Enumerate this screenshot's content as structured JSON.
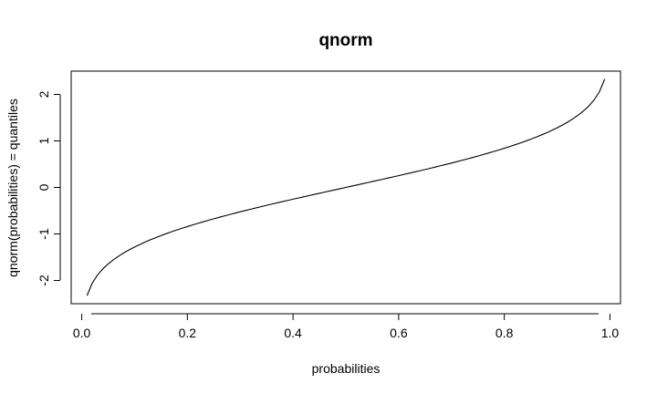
{
  "chart_data": {
    "type": "line",
    "title": "qnorm",
    "xlabel": "probabilities",
    "ylabel": "qnorm(probabilities) = quantiles",
    "xlim": [
      -0.02,
      1.02
    ],
    "ylim": [
      -2.5,
      2.5
    ],
    "xticks": [
      0.0,
      0.2,
      0.4,
      0.6,
      0.8,
      1.0
    ],
    "xtick_labels": [
      "0.0",
      "0.2",
      "0.4",
      "0.6",
      "0.8",
      "1.0"
    ],
    "yticks": [
      -2,
      -1,
      0,
      1,
      2
    ],
    "ytick_labels": [
      "-2",
      "-1",
      "0",
      "1",
      "2"
    ],
    "grid": false,
    "legend": "none",
    "series": [
      {
        "x": [
          0.01,
          0.02,
          0.03,
          0.04,
          0.05,
          0.06,
          0.07,
          0.08,
          0.09,
          0.1,
          0.11,
          0.12,
          0.13,
          0.14,
          0.15,
          0.16,
          0.17,
          0.18,
          0.19,
          0.2,
          0.21,
          0.22,
          0.23,
          0.24,
          0.25,
          0.26,
          0.27,
          0.28,
          0.29,
          0.3,
          0.31,
          0.32,
          0.33,
          0.34,
          0.35,
          0.36,
          0.37,
          0.38,
          0.39,
          0.4,
          0.41,
          0.42,
          0.43,
          0.44,
          0.45,
          0.46,
          0.47,
          0.48,
          0.49,
          0.5,
          0.51,
          0.52,
          0.53,
          0.54,
          0.55,
          0.56,
          0.57,
          0.58,
          0.59,
          0.6,
          0.61,
          0.62,
          0.63,
          0.64,
          0.65,
          0.66,
          0.67,
          0.68,
          0.69,
          0.7,
          0.71,
          0.72,
          0.73,
          0.74,
          0.75,
          0.76,
          0.77,
          0.78,
          0.79,
          0.8,
          0.81,
          0.82,
          0.83,
          0.84,
          0.85,
          0.86,
          0.87,
          0.88,
          0.89,
          0.9,
          0.91,
          0.92,
          0.93,
          0.94,
          0.95,
          0.96,
          0.97,
          0.98,
          0.99
        ],
        "y": [
          -2.326,
          -2.054,
          -1.881,
          -1.751,
          -1.645,
          -1.555,
          -1.476,
          -1.405,
          -1.341,
          -1.282,
          -1.227,
          -1.175,
          -1.126,
          -1.08,
          -1.036,
          -0.994,
          -0.954,
          -0.915,
          -0.878,
          -0.842,
          -0.806,
          -0.772,
          -0.739,
          -0.706,
          -0.674,
          -0.643,
          -0.613,
          -0.583,
          -0.553,
          -0.524,
          -0.496,
          -0.468,
          -0.44,
          -0.412,
          -0.385,
          -0.358,
          -0.332,
          -0.305,
          -0.279,
          -0.253,
          -0.228,
          -0.202,
          -0.176,
          -0.151,
          -0.126,
          -0.1,
          -0.075,
          -0.05,
          -0.025,
          0.0,
          0.025,
          0.05,
          0.075,
          0.1,
          0.126,
          0.151,
          0.176,
          0.202,
          0.228,
          0.253,
          0.279,
          0.305,
          0.332,
          0.358,
          0.385,
          0.412,
          0.44,
          0.468,
          0.496,
          0.524,
          0.553,
          0.583,
          0.613,
          0.643,
          0.674,
          0.706,
          0.739,
          0.772,
          0.806,
          0.842,
          0.878,
          0.915,
          0.954,
          0.994,
          1.036,
          1.08,
          1.126,
          1.175,
          1.227,
          1.282,
          1.341,
          1.405,
          1.476,
          1.555,
          1.645,
          1.751,
          1.881,
          2.054,
          2.326
        ],
        "color": "#000000"
      }
    ]
  }
}
